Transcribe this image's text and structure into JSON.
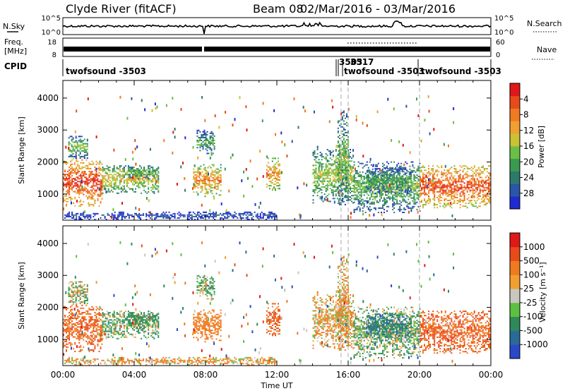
{
  "header": {
    "station_title": "Clyde River (fitACF)",
    "beam_title": "Beam 08",
    "date_range": "02/Mar/2016 - 03/Mar/2016"
  },
  "noise_panel": {
    "left_label": "N.Sky",
    "right_label": "N.Search",
    "left_ticks": [
      "10^5",
      "10^0"
    ],
    "right_ticks": [
      "10^5",
      "10^0"
    ]
  },
  "freq_panel": {
    "left_label_line1": "Freq.",
    "left_label_line2": "[MHz]",
    "right_label": "Nave",
    "left_ticks": [
      "18",
      "8"
    ],
    "right_ticks": [
      "60",
      "0"
    ]
  },
  "cpid_panel": {
    "label": "CPID",
    "segments": [
      "twofsound -3503",
      "3503",
      "3517",
      "twofsound -3503",
      "twofsound -3503"
    ]
  },
  "x_axis": {
    "label": "Time UT",
    "ticks": [
      "00:00",
      "04:00",
      "08:00",
      "12:00",
      "16:00",
      "20:00",
      "00:00"
    ],
    "range_hours": [
      0,
      24
    ]
  },
  "power_panel": {
    "ylabel": "Slant Range [km]",
    "yticks": [
      "1000",
      "2000",
      "3000",
      "4000"
    ],
    "yrange_km": [
      180,
      4550
    ],
    "colorbar_label": "Power [dB]",
    "colorbar_ticks": [
      "4",
      "8",
      "12",
      "16",
      "20",
      "24",
      "28"
    ],
    "colors": [
      "#1f2bd1",
      "#2a55a8",
      "#2e7a6a",
      "#3a9a52",
      "#6abf45",
      "#c9c233",
      "#f0a030",
      "#f07a20",
      "#e84a1a",
      "#e01818"
    ]
  },
  "velocity_panel": {
    "ylabel": "Slant Range [km]",
    "yticks": [
      "1000",
      "2000",
      "3000",
      "4000"
    ],
    "yrange_km": [
      180,
      4550
    ],
    "colorbar_label": "Velocity [m s⁻¹]",
    "colorbar_ticks": [
      "1000",
      "500",
      "100",
      "25",
      "-25",
      "-100",
      "-500",
      "-1000"
    ],
    "colors": [
      "#2a48c8",
      "#2a6a9a",
      "#2e8a5a",
      "#5cc040",
      "#c8c8c0",
      "#f0a030",
      "#f07a20",
      "#e84a1a",
      "#e01818"
    ]
  },
  "chart_data": {
    "type": "heatmap",
    "description_units": "time in UT hours, slant range in km",
    "x_range": [
      0,
      24
    ],
    "y_range": [
      180,
      4550
    ],
    "power_scale_db": [
      0,
      30
    ],
    "velocity_scale_ms": [
      -1000,
      1000
    ],
    "echo_regions": [
      {
        "t": [
          0.0,
          2.2
        ],
        "r": [
          600,
          2100
        ],
        "power_db": 27,
        "velocity_ms": -500
      },
      {
        "t": [
          0.3,
          1.4
        ],
        "r": [
          2100,
          2800
        ],
        "power_db": 14,
        "velocity_ms": 25
      },
      {
        "t": [
          2.2,
          5.4
        ],
        "r": [
          1000,
          1900
        ],
        "power_db": 18,
        "velocity_ms": 100
      },
      {
        "t": [
          3.4,
          5.4
        ],
        "r": [
          1450,
          1850
        ],
        "power_db": 14,
        "velocity_ms": 300
      },
      {
        "t": [
          7.3,
          8.9
        ],
        "r": [
          900,
          1900
        ],
        "power_db": 22,
        "velocity_ms": -300
      },
      {
        "t": [
          7.5,
          8.5
        ],
        "r": [
          2200,
          3000
        ],
        "power_db": 12,
        "velocity_ms": 100
      },
      {
        "t": [
          11.4,
          12.2
        ],
        "r": [
          1100,
          2100
        ],
        "power_db": 22,
        "velocity_ms": -500
      },
      {
        "t": [
          14.0,
          16.3
        ],
        "r": [
          700,
          2400
        ],
        "power_db": 16,
        "velocity_ms": -100
      },
      {
        "t": [
          15.4,
          16.0
        ],
        "r": [
          600,
          3600
        ],
        "power_db": 14,
        "velocity_ms": -100
      },
      {
        "t": [
          16.3,
          20.0
        ],
        "r": [
          400,
          2000
        ],
        "power_db": 14,
        "velocity_ms": 100
      },
      {
        "t": [
          17.0,
          19.5
        ],
        "r": [
          1000,
          1800
        ],
        "power_db": 12,
        "velocity_ms": 500
      },
      {
        "t": [
          20.0,
          24.0
        ],
        "r": [
          550,
          1900
        ],
        "power_db": 26,
        "velocity_ms": -500
      },
      {
        "t": [
          0.0,
          12.0
        ],
        "r": [
          180,
          420
        ],
        "power_db": 6,
        "velocity_ms": -100
      }
    ]
  }
}
